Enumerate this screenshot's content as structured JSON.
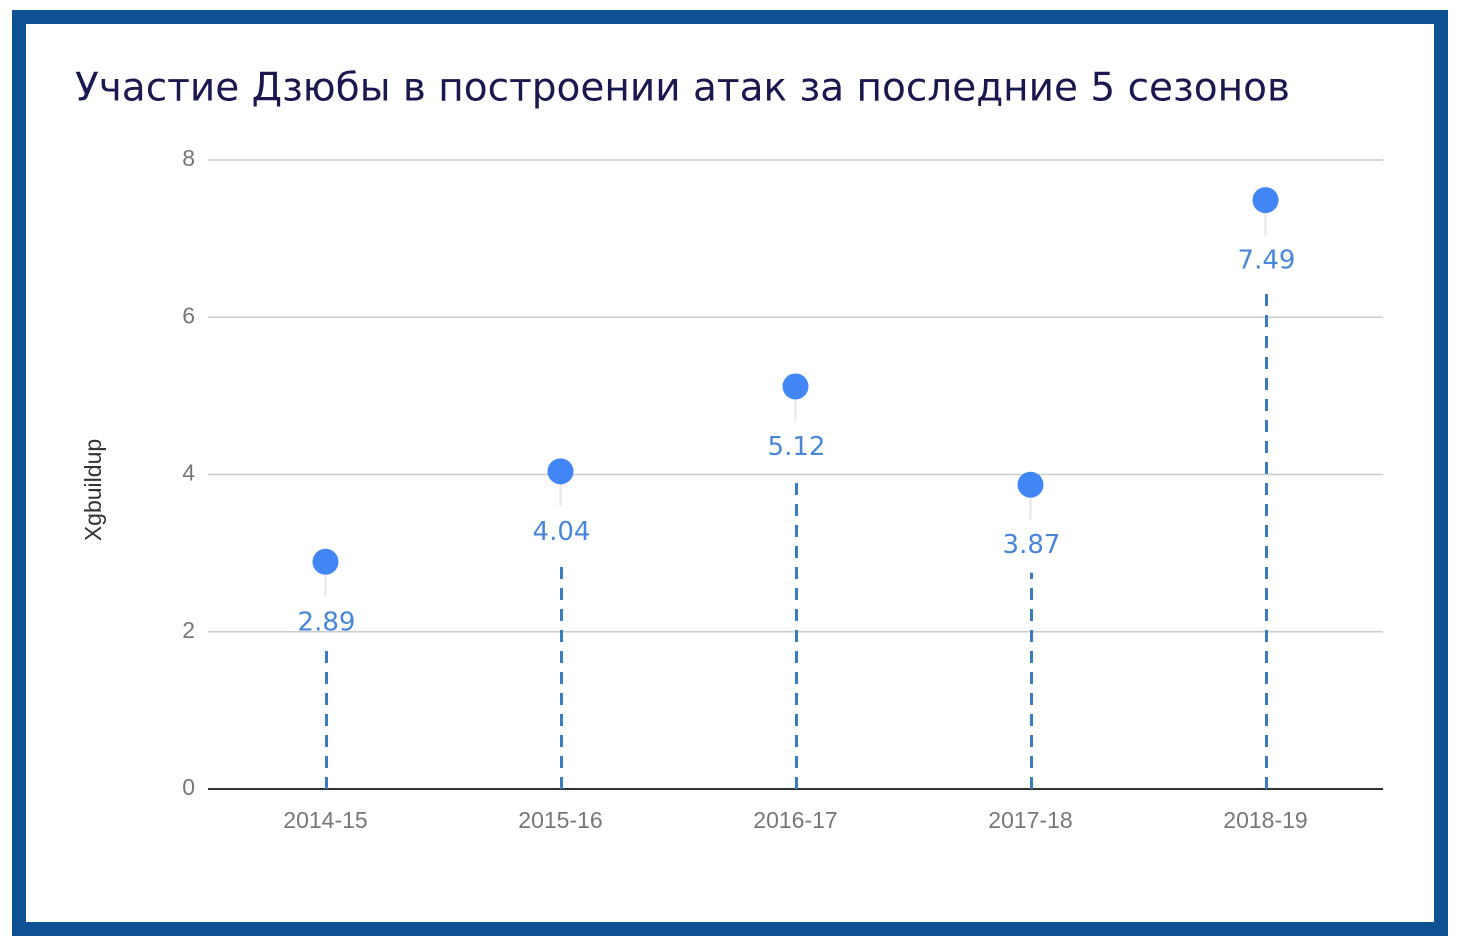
{
  "chart_data": {
    "type": "lollipop",
    "title": "Участие Дзюбы в построении атак за последние 5 сезонов",
    "y_label": "Xgbuildup",
    "categories": [
      "2014-15",
      "2015-16",
      "2016-17",
      "2017-18",
      "2018-19"
    ],
    "values": [
      2.89,
      4.04,
      5.12,
      3.87,
      7.49
    ],
    "color": "#4285f4",
    "stem_color": "#3a7cc0",
    "ylim": [
      0,
      8
    ],
    "yticks": [
      0,
      2,
      4,
      6,
      8
    ],
    "grid": true
  }
}
